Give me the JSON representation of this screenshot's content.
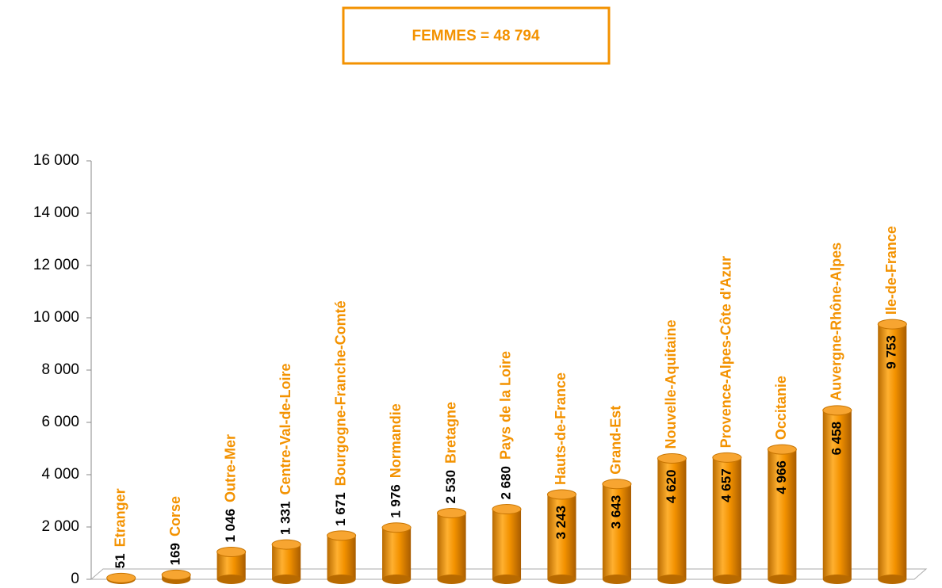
{
  "chart_data": {
    "type": "bar",
    "title": "FEMMES = 48 794",
    "categories": [
      "Etranger",
      "Corse",
      "Outre-Mer",
      "Centre-Val-de-Loire",
      "Bourgogne-Franche-Comté",
      "Normandie",
      "Bretagne",
      "Pays de la Loire",
      "Hauts-de-France",
      "Grand-Est",
      "Nouvelle-Aquitaine",
      "Provence-Alpes-Côte d'Azur",
      "Occitanie",
      "Auvergne-Rhône-Alpes",
      "Ile-de-France"
    ],
    "values": [
      51,
      169,
      1046,
      1331,
      1671,
      1976,
      2530,
      2680,
      3243,
      3643,
      4620,
      4657,
      4966,
      6458,
      9753
    ],
    "value_labels": [
      "51",
      "169",
      "1 046",
      "1 331",
      "1 671",
      "1 976",
      "2 530",
      "2 680",
      "3 243",
      "3 643",
      "4 620",
      "4 657",
      "4 966",
      "6 458",
      "9 753"
    ],
    "color": "#f39200",
    "ylim": [
      0,
      16000
    ],
    "yticks": [
      0,
      {
        "value": 2000,
        "label": "2 000"
      },
      {
        "value": 4000,
        "label": "4 000"
      },
      {
        "value": 6000,
        "label": "6 000"
      },
      {
        "value": 8000,
        "label": "8 000"
      },
      {
        "value": 10000,
        "label": "10 000"
      },
      {
        "value": 12000,
        "label": "12 000"
      },
      {
        "value": 14000,
        "label": "14 000"
      },
      {
        "value": 16000,
        "label": "16 000"
      }
    ],
    "grid": false
  }
}
